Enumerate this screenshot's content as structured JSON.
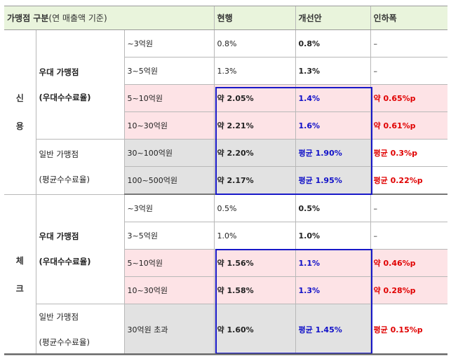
{
  "header": {
    "category": "가맹점 구분",
    "category_note": "(연 매출액 기준)",
    "current": "현행",
    "improved": "개선안",
    "reduction": "인하폭"
  },
  "sections": [
    {
      "name": "신\n용",
      "groups": [
        {
          "label": "우대 가맹점\n(우대수수료율)",
          "rows": [
            {
              "revenue": "~3억원",
              "current": "0.8%",
              "improved": "0.8%",
              "reduction": "–"
            },
            {
              "revenue": "3~5억원",
              "current": "1.3%",
              "improved": "1.3%",
              "reduction": "–"
            },
            {
              "revenue": "5~10억원",
              "current": "약 2.05%",
              "improved": "1.4%",
              "reduction": "약 0.65%p"
            },
            {
              "revenue": "10~30억원",
              "current": "약 2.21%",
              "improved": "1.6%",
              "reduction": "약 0.61%p"
            }
          ]
        },
        {
          "label": "일반 가맹점\n(평균수수료율)",
          "rows": [
            {
              "revenue": "30~100억원",
              "current": "약 2.20%",
              "improved": "평균 1.90%",
              "reduction": "평균 0.3%p"
            },
            {
              "revenue": "100~500억원",
              "current": "약 2.17%",
              "improved": "평균 1.95%",
              "reduction": "평균 0.22%p"
            }
          ]
        }
      ]
    },
    {
      "name": "체\n크",
      "groups": [
        {
          "label": "우대 가맹점\n(우대수수료율)",
          "rows": [
            {
              "revenue": "~3억원",
              "current": "0.5%",
              "improved": "0.5%",
              "reduction": "–"
            },
            {
              "revenue": "3~5억원",
              "current": "1.0%",
              "improved": "1.0%",
              "reduction": "–"
            },
            {
              "revenue": "5~10억원",
              "current": "약 1.56%",
              "improved": "1.1%",
              "reduction": "약 0.46%p"
            },
            {
              "revenue": "10~30억원",
              "current": "약 1.58%",
              "improved": "1.3%",
              "reduction": "약 0.28%p"
            }
          ]
        },
        {
          "label": "일반 가맹점\n(평균수수료율)",
          "rows": [
            {
              "revenue": "30억원 초과",
              "current": "약 1.60%",
              "improved": "평균 1.45%",
              "reduction": "평균 0.15%p"
            }
          ]
        }
      ]
    }
  ],
  "colors": {
    "header_bg": "#e9f4dc",
    "pink_bg": "#fde3e6",
    "gray_bg": "#e2e2e2",
    "highlight_border": "#1818c8",
    "improved_text": "#1010c8",
    "reduction_text": "#e00000"
  }
}
